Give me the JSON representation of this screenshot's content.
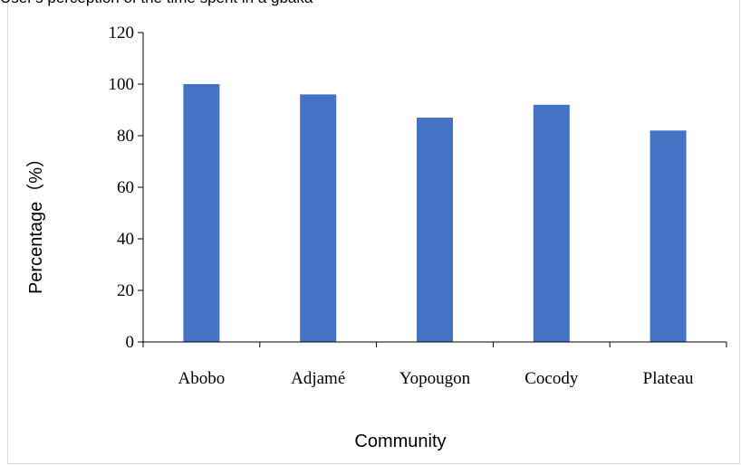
{
  "caption": "User's perception of the time spent in a gbaka",
  "chart_data": {
    "type": "bar",
    "title": "",
    "xlabel": "Community",
    "ylabel": "Percentage（%）",
    "categories": [
      "Abobo",
      "Adjamé",
      "Yopougon",
      "Cocody",
      "Plateau"
    ],
    "values": [
      100,
      96,
      87,
      92,
      82
    ],
    "ylim": [
      0,
      120
    ],
    "yticks": [
      0,
      20,
      40,
      60,
      80,
      100,
      120
    ],
    "grid": false,
    "legend": "none",
    "bar_color": "#4472c4",
    "axis_color": "#000000"
  }
}
